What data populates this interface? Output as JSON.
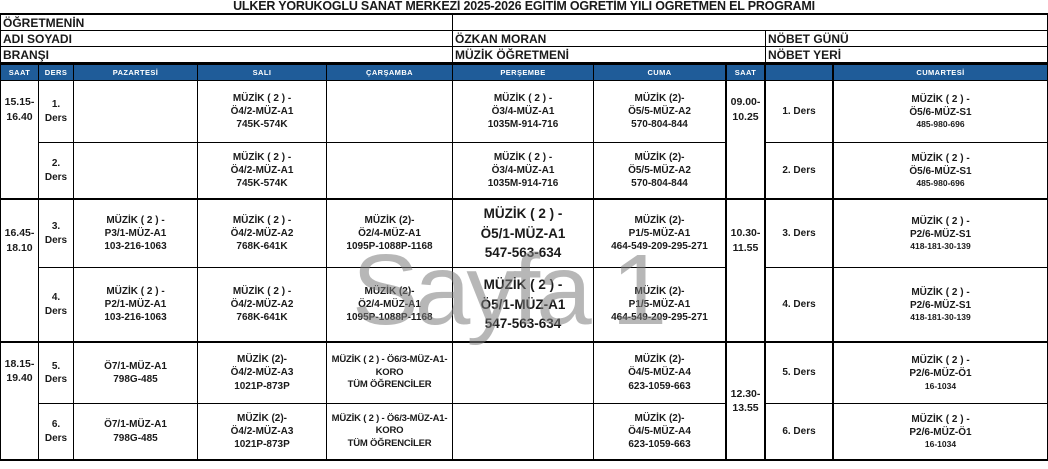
{
  "title": "ÜLKER YÖRÜKOĞLU SANAT MERKEZİ 2025-2026 EĞİTİM ÖĞRETİM YILI ÖĞRETMEN EL PROGRAMI",
  "watermark": "Sayfa 1",
  "info": {
    "teacher_label": "ÖĞRETMENİN",
    "name_label": "ADI SOYADI",
    "name_value": "ÖZKAN MORAN",
    "duty_day_label": "NÖBET GÜNÜ",
    "branch_label": "BRANŞI",
    "branch_value": "MÜZİK ÖĞRETMENİ",
    "duty_place_label": "NÖBET YERİ"
  },
  "columns": {
    "saat1": "SAAT",
    "ders": "DERS",
    "pazartesi": "PAZARTESİ",
    "sali": "SALI",
    "carsamba": "ÇARŞAMBA",
    "persembe": "PERŞEMBE",
    "cuma": "CUMA",
    "saat2": "SAAT",
    "blank": "",
    "cumartesi": "CUMARTESİ"
  },
  "schedule": {
    "left_times": [
      "15.15-\n16.40",
      "16.45-\n18.10",
      "18.15-\n19.40"
    ],
    "right_times": [
      "09.00-\n10.25",
      "10.30-\n11.55",
      "12.30-\n13.55"
    ],
    "rows": [
      {
        "ders": "1.\nDers",
        "pazartesi": "",
        "sali": "MÜZİK ( 2 ) -\nÖ4/2-MÜZ-A1\n745K-574K",
        "carsamba": "",
        "persembe": "MÜZİK ( 2 ) -\nÖ3/4-MÜZ-A1\n1035M-914-716",
        "cuma": "MÜZİK (2)-\nÖ5/5-MÜZ-A2\n570-804-844",
        "ders_right": "1. Ders",
        "cumartesi": "MÜZİK ( 2 ) -\nÖ5/6-MÜZ-S1\n485-980-696"
      },
      {
        "ders": "2.\nDers",
        "pazartesi": "",
        "sali": "MÜZİK ( 2 ) -\nÖ4/2-MÜZ-A1\n745K-574K",
        "carsamba": "",
        "persembe": "MÜZİK ( 2 ) -\nÖ3/4-MÜZ-A1\n1035M-914-716",
        "cuma": "MÜZİK (2)-\nÖ5/5-MÜZ-A2\n570-804-844",
        "ders_right": "2. Ders",
        "cumartesi": "MÜZİK ( 2 ) -\nÖ5/6-MÜZ-S1\n485-980-696"
      },
      {
        "ders": "3.\nDers",
        "pazartesi": "MÜZİK ( 2 ) -\nP3/1-MÜZ-A1\n103-216-1063",
        "sali": "MÜZİK ( 2 ) -\nÖ4/2-MÜZ-A2\n768K-641K",
        "carsamba": "MÜZİK (2)-\nÖ2/4-MÜZ-A1\n1095P-1088P-1168",
        "persembe": "MÜZİK ( 2 ) -\nÖ5/1-MÜZ-A1\n547-563-634",
        "cuma": "MÜZİK (2)-\nP1/5-MÜZ-A1\n464-549-209-295-271",
        "ders_right": "3. Ders",
        "cumartesi": "MÜZİK ( 2 ) -\nP2/6-MÜZ-S1\n418-181-30-139"
      },
      {
        "ders": "4.\nDers",
        "pazartesi": "MÜZİK ( 2 ) -\nP2/1-MÜZ-A1\n103-216-1063",
        "sali": "MÜZİK ( 2 ) -\nÖ4/2-MÜZ-A2\n768K-641K",
        "carsamba": "MÜZİK (2)-\nÖ2/4-MÜZ-A1\n1095P-1088P-1168",
        "persembe": "MÜZİK ( 2 ) -\nÖ5/1-MÜZ-A1\n547-563-634",
        "cuma": "MÜZİK (2)-\nP1/5-MÜZ-A1\n464-549-209-295-271",
        "ders_right": "4. Ders",
        "cumartesi": "MÜZİK ( 2 ) -\nP2/6-MÜZ-S1\n418-181-30-139"
      },
      {
        "ders": "5.\nDers",
        "pazartesi": "Ö7/1-MÜZ-A1\n798G-485",
        "sali": "MÜZİK (2)-\nÖ4/2-MÜZ-A3\n1021P-873P",
        "carsamba": "MÜZİK ( 2 ) - Ö6/3-MÜZ-A1-\nKORO\nTÜM ÖĞRENCİLER",
        "persembe": "",
        "cuma": "MÜZİK (2)-\nÖ4/5-MÜZ-A4\n623-1059-663",
        "ders_right": "5. Ders",
        "cumartesi": "MÜZİK ( 2 ) -\nP2/6-MÜZ-Ö1\n16-1034"
      },
      {
        "ders": "6.\nDers",
        "pazartesi": "Ö7/1-MÜZ-A1\n798G-485",
        "sali": "MÜZİK (2)-\nÖ4/2-MÜZ-A3\n1021P-873P",
        "carsamba": "MÜZİK ( 2 ) - Ö6/3-MÜZ-A1-\nKORO\nTÜM ÖĞRENCİLER",
        "persembe": "",
        "cuma": "MÜZİK (2)-\nÖ4/5-MÜZ-A4\n623-1059-663",
        "ders_right": "6. Ders",
        "cumartesi": "MÜZİK ( 2 ) -\nP2/6-MÜZ-Ö1\n16-1034"
      }
    ]
  }
}
